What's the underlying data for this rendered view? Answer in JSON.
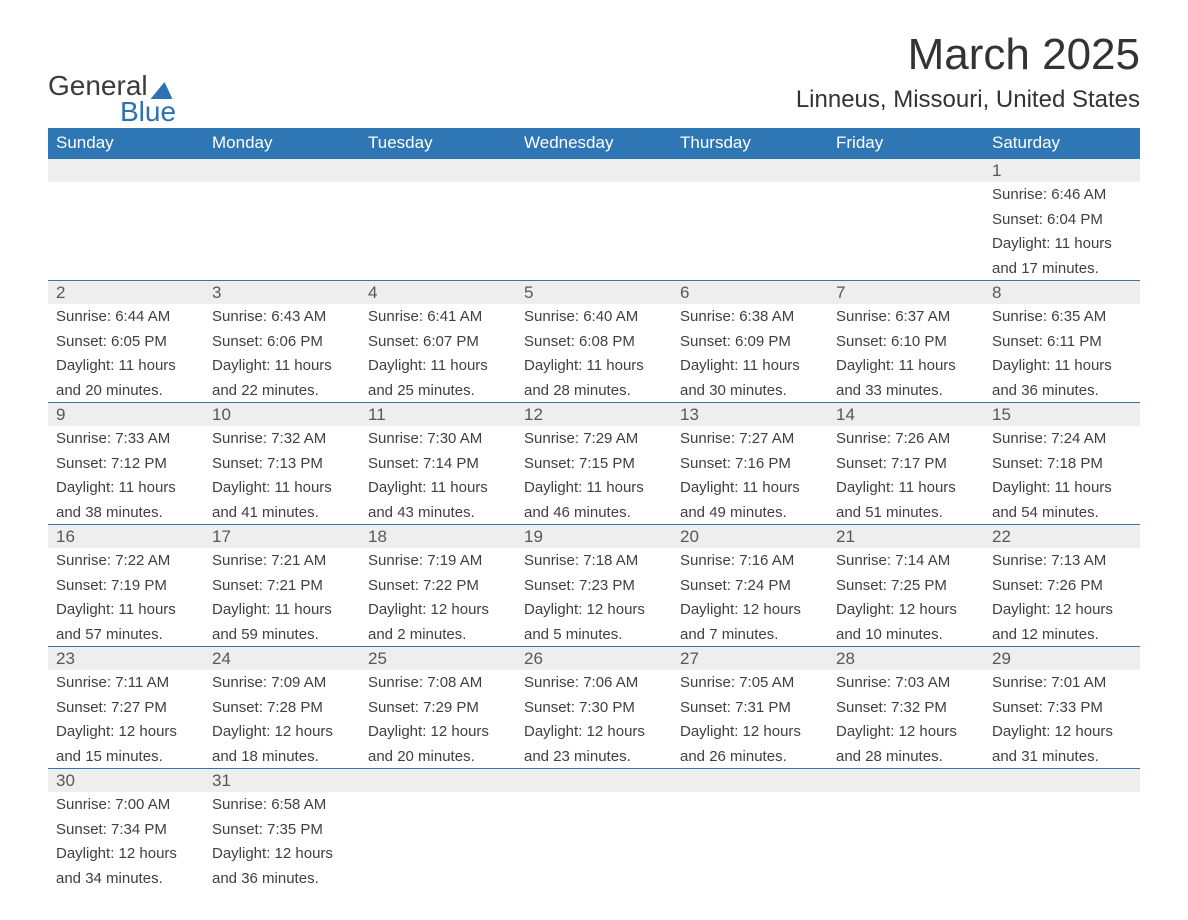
{
  "logo": {
    "word1": "General",
    "word2": "Blue"
  },
  "header": {
    "title": "March 2025",
    "location": "Linneus, Missouri, United States"
  },
  "colors": {
    "header_bg": "#2f76b5",
    "header_text": "#ffffff",
    "daynum_bg": "#eeeeee",
    "daynum_text": "#585858",
    "body_text": "#404040",
    "week_border": "#2f76b5",
    "background": "#ffffff",
    "logo_accent": "#2b72b5"
  },
  "typography": {
    "title_fontsize": 44,
    "location_fontsize": 24,
    "dayheader_fontsize": 17,
    "daynum_fontsize": 17,
    "detail_fontsize": 15,
    "font_family": "Arial"
  },
  "layout": {
    "columns": 7,
    "rows": 6,
    "start_day_index": 6,
    "total_days": 31
  },
  "days_of_week": [
    "Sunday",
    "Monday",
    "Tuesday",
    "Wednesday",
    "Thursday",
    "Friday",
    "Saturday"
  ],
  "weeks": [
    [
      null,
      null,
      null,
      null,
      null,
      null,
      {
        "n": "1",
        "sunrise": "Sunrise: 6:46 AM",
        "sunset": "Sunset: 6:04 PM",
        "d1": "Daylight: 11 hours",
        "d2": "and 17 minutes."
      }
    ],
    [
      {
        "n": "2",
        "sunrise": "Sunrise: 6:44 AM",
        "sunset": "Sunset: 6:05 PM",
        "d1": "Daylight: 11 hours",
        "d2": "and 20 minutes."
      },
      {
        "n": "3",
        "sunrise": "Sunrise: 6:43 AM",
        "sunset": "Sunset: 6:06 PM",
        "d1": "Daylight: 11 hours",
        "d2": "and 22 minutes."
      },
      {
        "n": "4",
        "sunrise": "Sunrise: 6:41 AM",
        "sunset": "Sunset: 6:07 PM",
        "d1": "Daylight: 11 hours",
        "d2": "and 25 minutes."
      },
      {
        "n": "5",
        "sunrise": "Sunrise: 6:40 AM",
        "sunset": "Sunset: 6:08 PM",
        "d1": "Daylight: 11 hours",
        "d2": "and 28 minutes."
      },
      {
        "n": "6",
        "sunrise": "Sunrise: 6:38 AM",
        "sunset": "Sunset: 6:09 PM",
        "d1": "Daylight: 11 hours",
        "d2": "and 30 minutes."
      },
      {
        "n": "7",
        "sunrise": "Sunrise: 6:37 AM",
        "sunset": "Sunset: 6:10 PM",
        "d1": "Daylight: 11 hours",
        "d2": "and 33 minutes."
      },
      {
        "n": "8",
        "sunrise": "Sunrise: 6:35 AM",
        "sunset": "Sunset: 6:11 PM",
        "d1": "Daylight: 11 hours",
        "d2": "and 36 minutes."
      }
    ],
    [
      {
        "n": "9",
        "sunrise": "Sunrise: 7:33 AM",
        "sunset": "Sunset: 7:12 PM",
        "d1": "Daylight: 11 hours",
        "d2": "and 38 minutes."
      },
      {
        "n": "10",
        "sunrise": "Sunrise: 7:32 AM",
        "sunset": "Sunset: 7:13 PM",
        "d1": "Daylight: 11 hours",
        "d2": "and 41 minutes."
      },
      {
        "n": "11",
        "sunrise": "Sunrise: 7:30 AM",
        "sunset": "Sunset: 7:14 PM",
        "d1": "Daylight: 11 hours",
        "d2": "and 43 minutes."
      },
      {
        "n": "12",
        "sunrise": "Sunrise: 7:29 AM",
        "sunset": "Sunset: 7:15 PM",
        "d1": "Daylight: 11 hours",
        "d2": "and 46 minutes."
      },
      {
        "n": "13",
        "sunrise": "Sunrise: 7:27 AM",
        "sunset": "Sunset: 7:16 PM",
        "d1": "Daylight: 11 hours",
        "d2": "and 49 minutes."
      },
      {
        "n": "14",
        "sunrise": "Sunrise: 7:26 AM",
        "sunset": "Sunset: 7:17 PM",
        "d1": "Daylight: 11 hours",
        "d2": "and 51 minutes."
      },
      {
        "n": "15",
        "sunrise": "Sunrise: 7:24 AM",
        "sunset": "Sunset: 7:18 PM",
        "d1": "Daylight: 11 hours",
        "d2": "and 54 minutes."
      }
    ],
    [
      {
        "n": "16",
        "sunrise": "Sunrise: 7:22 AM",
        "sunset": "Sunset: 7:19 PM",
        "d1": "Daylight: 11 hours",
        "d2": "and 57 minutes."
      },
      {
        "n": "17",
        "sunrise": "Sunrise: 7:21 AM",
        "sunset": "Sunset: 7:21 PM",
        "d1": "Daylight: 11 hours",
        "d2": "and 59 minutes."
      },
      {
        "n": "18",
        "sunrise": "Sunrise: 7:19 AM",
        "sunset": "Sunset: 7:22 PM",
        "d1": "Daylight: 12 hours",
        "d2": "and 2 minutes."
      },
      {
        "n": "19",
        "sunrise": "Sunrise: 7:18 AM",
        "sunset": "Sunset: 7:23 PM",
        "d1": "Daylight: 12 hours",
        "d2": "and 5 minutes."
      },
      {
        "n": "20",
        "sunrise": "Sunrise: 7:16 AM",
        "sunset": "Sunset: 7:24 PM",
        "d1": "Daylight: 12 hours",
        "d2": "and 7 minutes."
      },
      {
        "n": "21",
        "sunrise": "Sunrise: 7:14 AM",
        "sunset": "Sunset: 7:25 PM",
        "d1": "Daylight: 12 hours",
        "d2": "and 10 minutes."
      },
      {
        "n": "22",
        "sunrise": "Sunrise: 7:13 AM",
        "sunset": "Sunset: 7:26 PM",
        "d1": "Daylight: 12 hours",
        "d2": "and 12 minutes."
      }
    ],
    [
      {
        "n": "23",
        "sunrise": "Sunrise: 7:11 AM",
        "sunset": "Sunset: 7:27 PM",
        "d1": "Daylight: 12 hours",
        "d2": "and 15 minutes."
      },
      {
        "n": "24",
        "sunrise": "Sunrise: 7:09 AM",
        "sunset": "Sunset: 7:28 PM",
        "d1": "Daylight: 12 hours",
        "d2": "and 18 minutes."
      },
      {
        "n": "25",
        "sunrise": "Sunrise: 7:08 AM",
        "sunset": "Sunset: 7:29 PM",
        "d1": "Daylight: 12 hours",
        "d2": "and 20 minutes."
      },
      {
        "n": "26",
        "sunrise": "Sunrise: 7:06 AM",
        "sunset": "Sunset: 7:30 PM",
        "d1": "Daylight: 12 hours",
        "d2": "and 23 minutes."
      },
      {
        "n": "27",
        "sunrise": "Sunrise: 7:05 AM",
        "sunset": "Sunset: 7:31 PM",
        "d1": "Daylight: 12 hours",
        "d2": "and 26 minutes."
      },
      {
        "n": "28",
        "sunrise": "Sunrise: 7:03 AM",
        "sunset": "Sunset: 7:32 PM",
        "d1": "Daylight: 12 hours",
        "d2": "and 28 minutes."
      },
      {
        "n": "29",
        "sunrise": "Sunrise: 7:01 AM",
        "sunset": "Sunset: 7:33 PM",
        "d1": "Daylight: 12 hours",
        "d2": "and 31 minutes."
      }
    ],
    [
      {
        "n": "30",
        "sunrise": "Sunrise: 7:00 AM",
        "sunset": "Sunset: 7:34 PM",
        "d1": "Daylight: 12 hours",
        "d2": "and 34 minutes."
      },
      {
        "n": "31",
        "sunrise": "Sunrise: 6:58 AM",
        "sunset": "Sunset: 7:35 PM",
        "d1": "Daylight: 12 hours",
        "d2": "and 36 minutes."
      },
      null,
      null,
      null,
      null,
      null
    ]
  ]
}
